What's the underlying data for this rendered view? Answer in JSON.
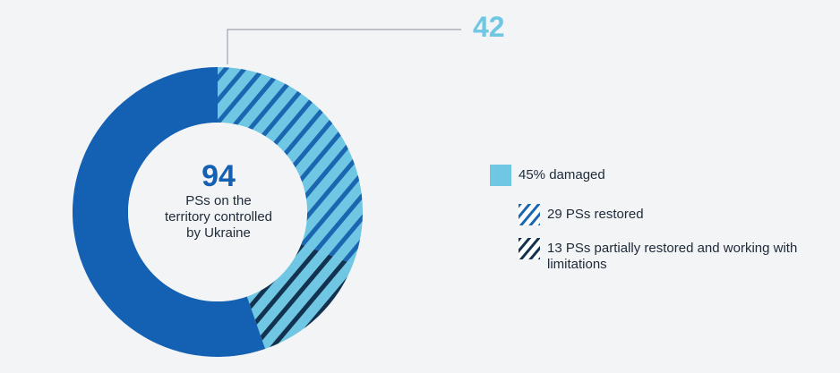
{
  "chart_data": {
    "type": "pie",
    "donut": true,
    "total": {
      "value": "94",
      "caption": "PSs on the\nterritory controlled\nby Ukraine"
    },
    "callout": {
      "value": "42"
    },
    "slices": [
      {
        "label": "29 PSs restored",
        "value": 29,
        "color": "#6fc7e3",
        "pattern": "hatch-light"
      },
      {
        "label": "13 PSs partially restored and working with limitations",
        "value": 13,
        "color": "#6fc7e3",
        "pattern": "hatch-dark"
      },
      {
        "label": "",
        "value": 52,
        "color": "#1461b3",
        "pattern": "solid"
      }
    ],
    "legend": {
      "main": {
        "label": "45% damaged",
        "color": "#6fc7e3"
      },
      "items": [
        {
          "label": "29 PSs restored",
          "pattern": "hatch-light"
        },
        {
          "label": "13 PSs partially restored and working with limitations",
          "pattern": "hatch-dark"
        }
      ],
      "position": "right"
    },
    "colors": {
      "dark_blue": "#1461b3",
      "light_blue": "#6fc7e3",
      "navy": "#13324f",
      "hatch_blue": "#1a66b0"
    }
  }
}
